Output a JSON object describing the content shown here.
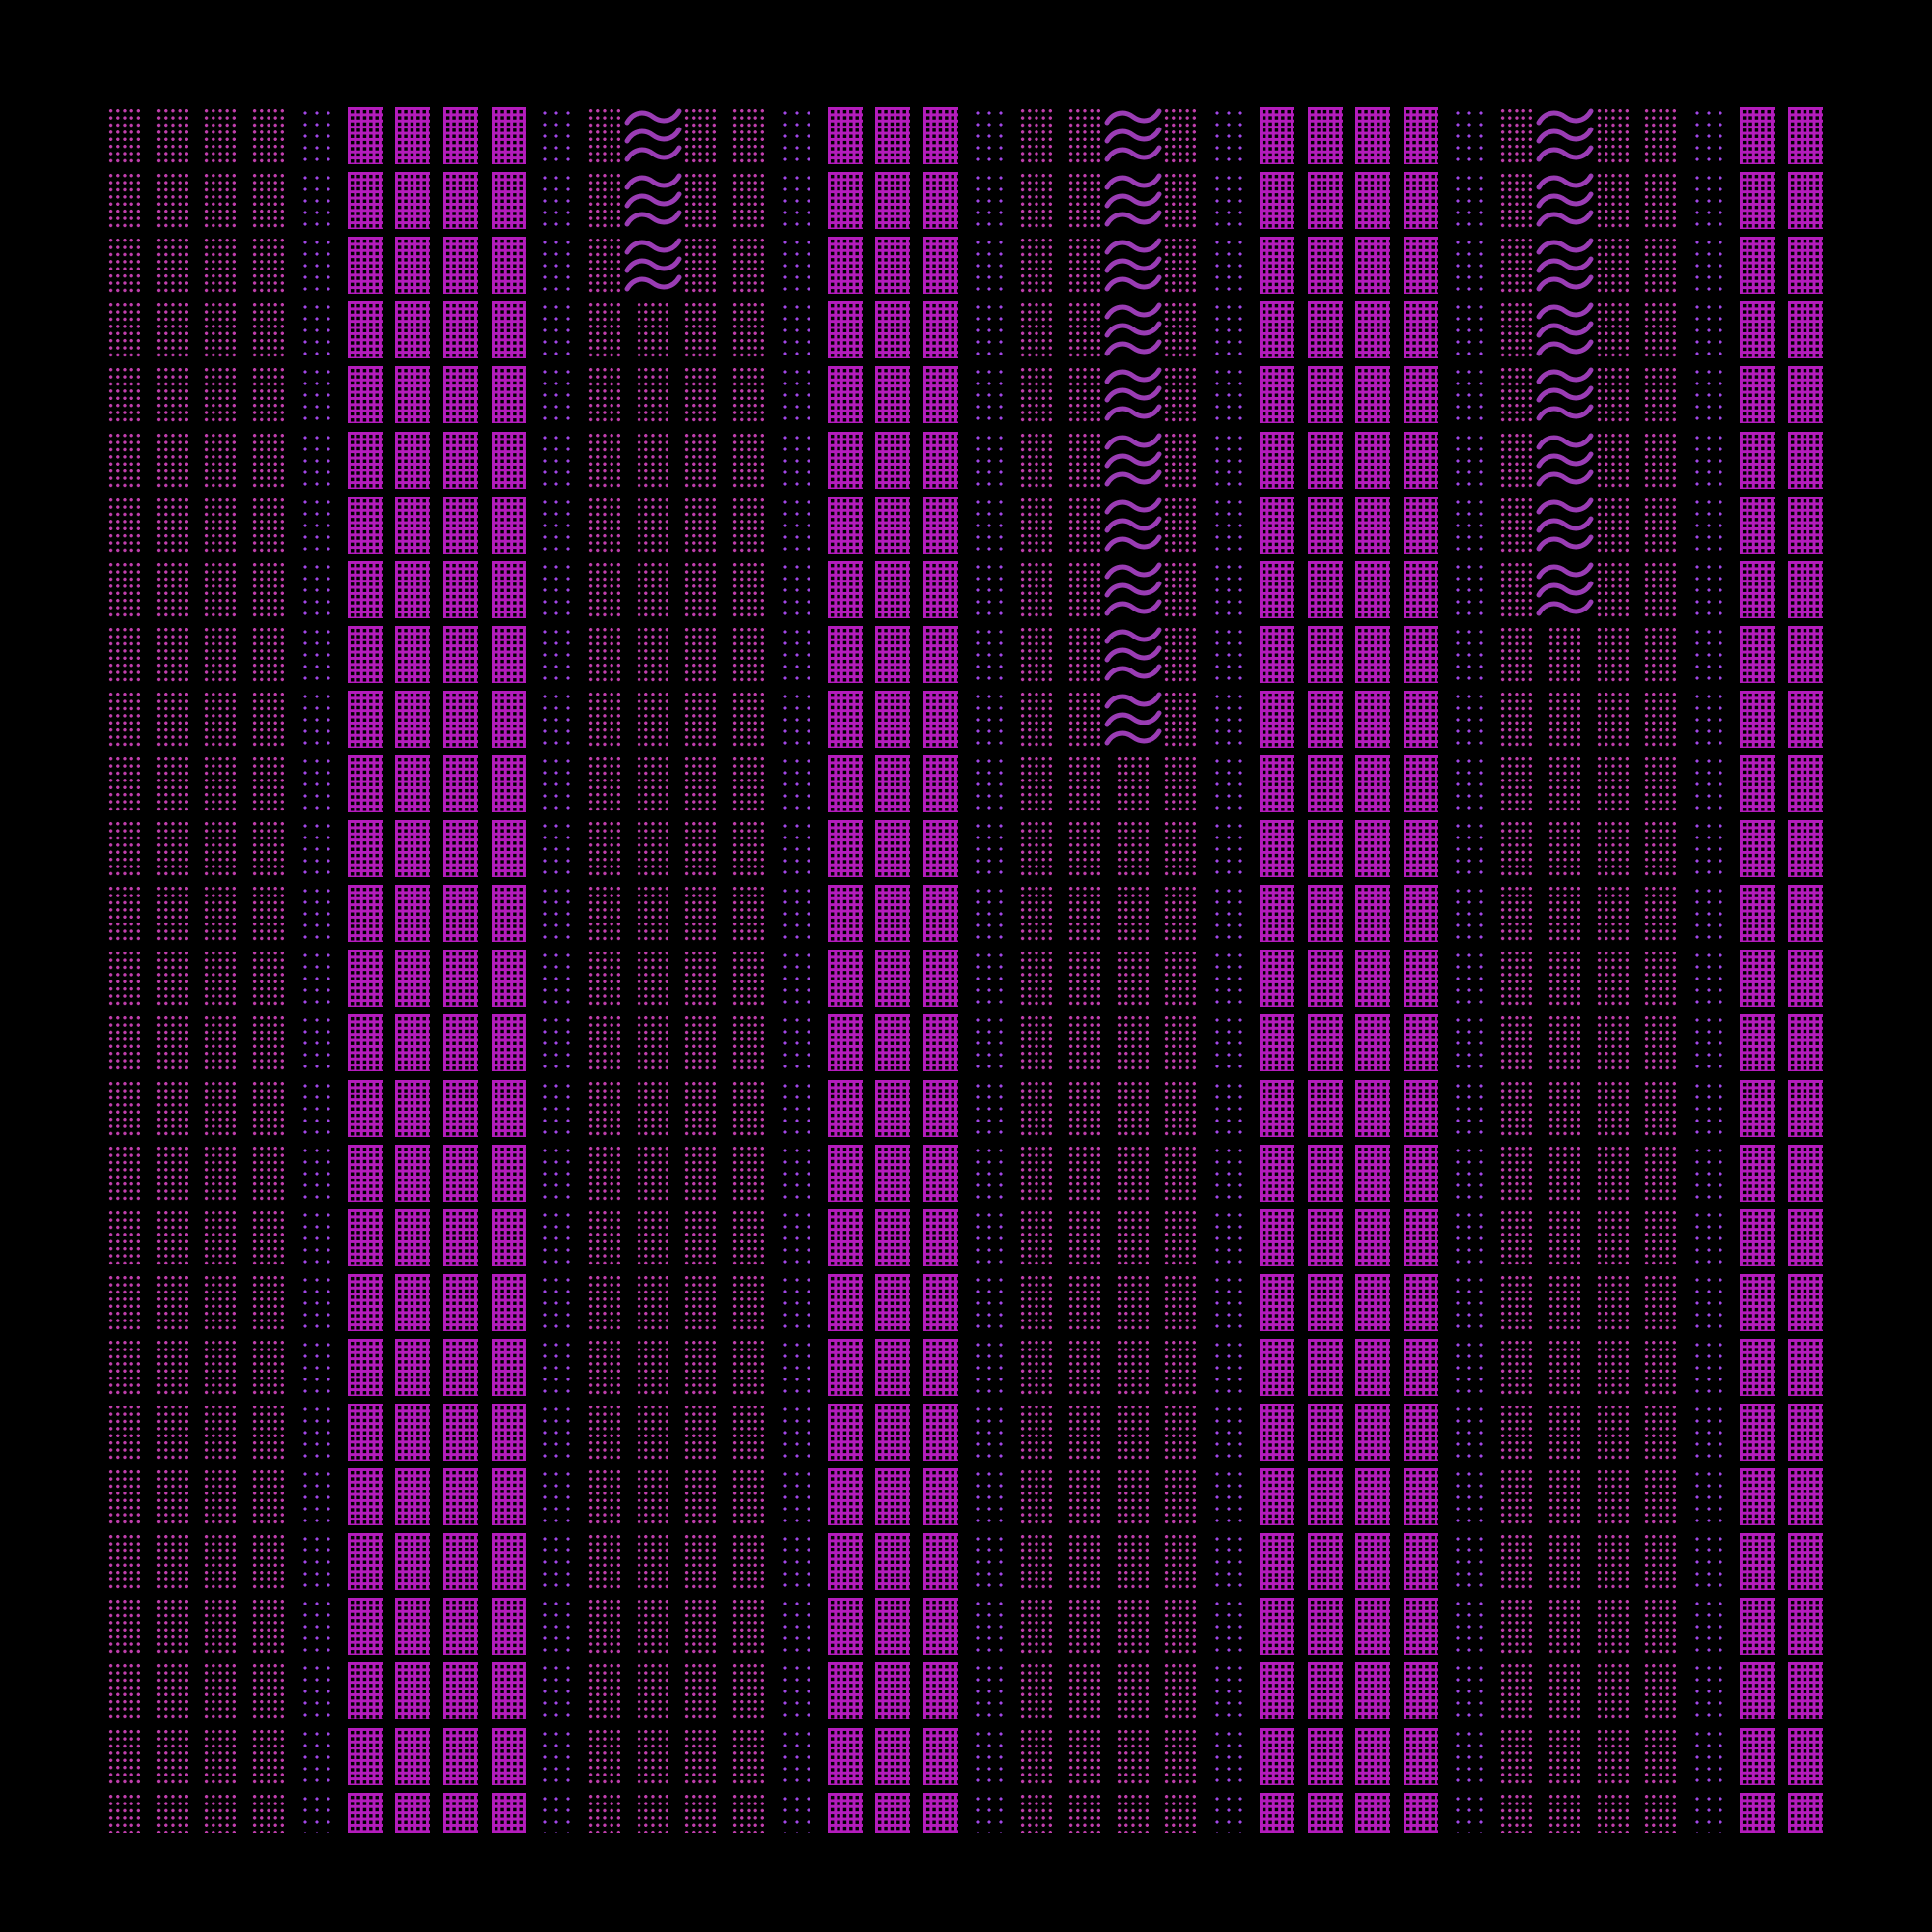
{
  "pattern": {
    "rows": 27,
    "column_types": [
      "A",
      "A",
      "A",
      "A",
      "B",
      "C",
      "C",
      "C",
      "C",
      "B",
      "A",
      "A",
      "A",
      "A",
      "B",
      "C",
      "C",
      "C",
      "B",
      "A",
      "A",
      "A",
      "A",
      "B",
      "C",
      "C",
      "C",
      "C",
      "B",
      "A",
      "A",
      "A",
      "A",
      "B",
      "C",
      "C",
      "C"
    ],
    "wave_columns": [
      {
        "column": 11,
        "rows": [
          0,
          1,
          2
        ]
      },
      {
        "column": 21,
        "rows": [
          0,
          1,
          2,
          3,
          4,
          5,
          6,
          7,
          8,
          9
        ]
      },
      {
        "column": 30,
        "rows": [
          0,
          1,
          2,
          3,
          4,
          5,
          6,
          7
        ]
      }
    ],
    "colors": {
      "background": "#000000",
      "dot_pink": "#c23fae",
      "dot_purple": "#a146e6",
      "solid_magenta": "#b41cbc",
      "wave": "#9a3cb4"
    },
    "cell_kinds": {
      "A": "pink-dot-tile",
      "B": "sparse-purple-dot-tile",
      "C": "solid-magenta-perforated-tile",
      "W": "wave-symbol"
    }
  }
}
